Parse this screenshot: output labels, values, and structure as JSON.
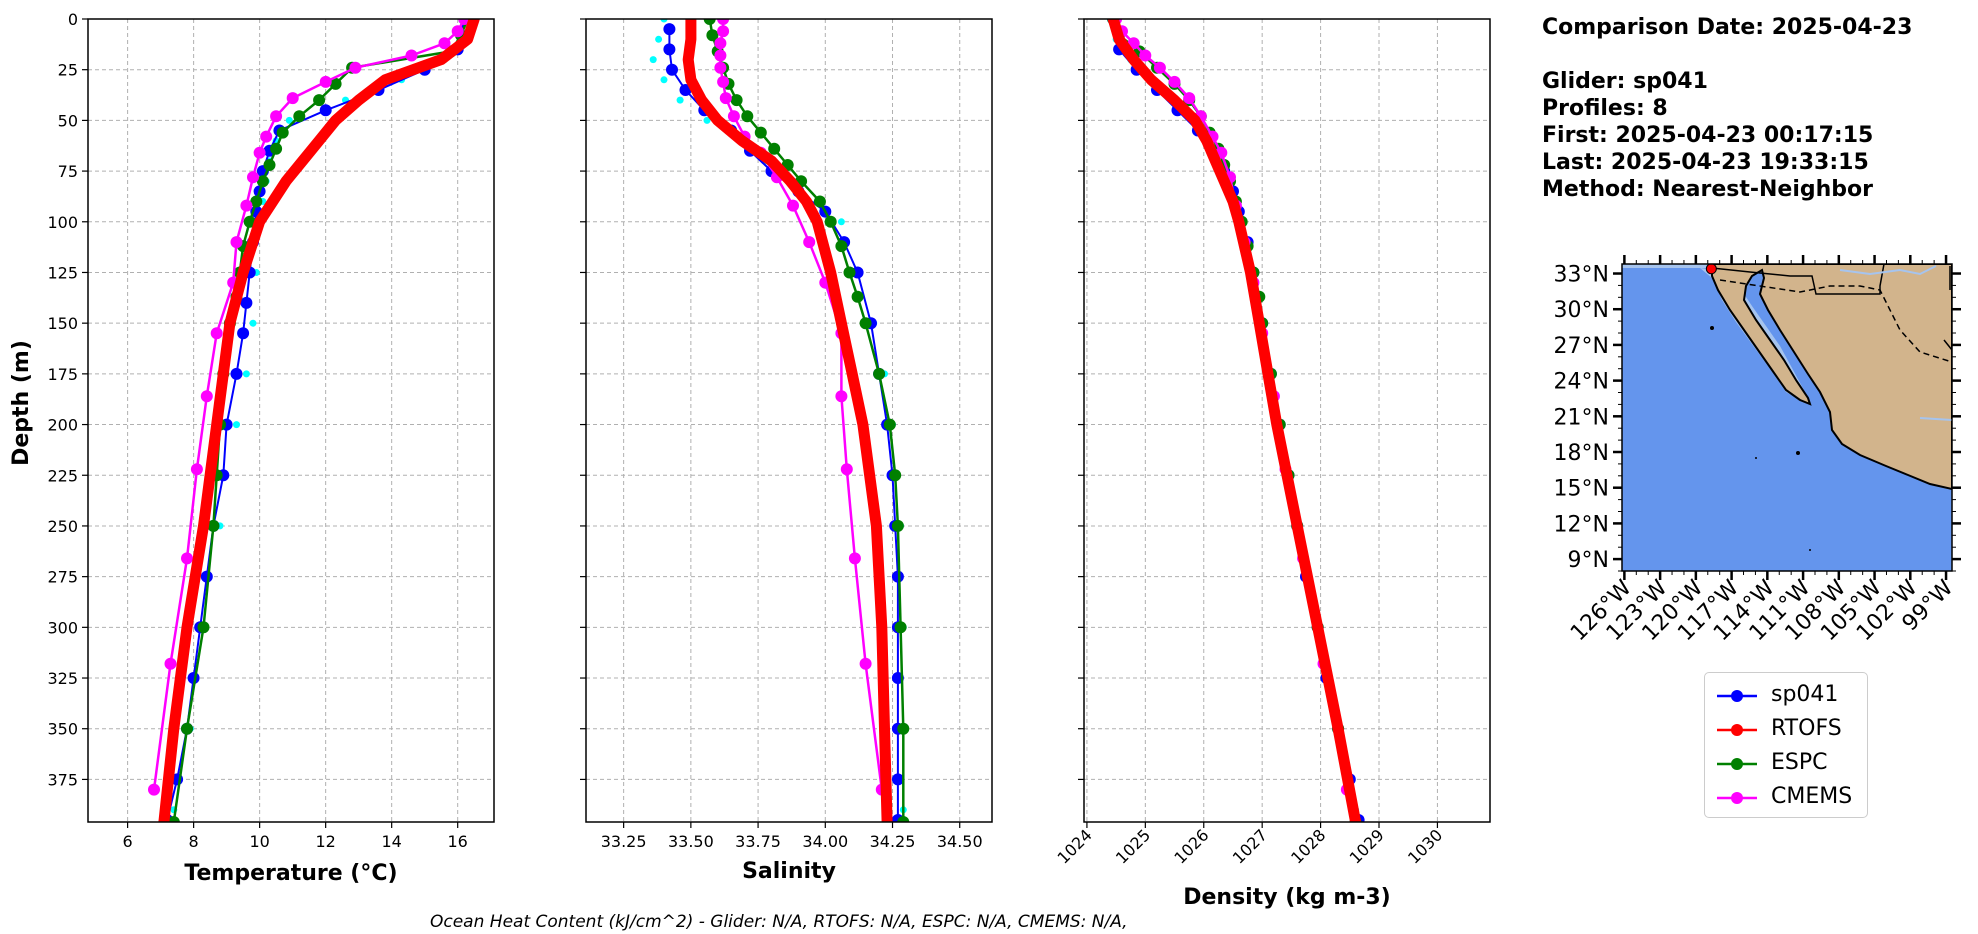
{
  "info": {
    "comparison_date": "Comparison Date: 2025-04-23",
    "glider": "Glider: sp041",
    "profiles": "Profiles: 8",
    "first": "First: 2025-04-23 00:17:15",
    "last": "Last: 2025-04-23 19:33:15",
    "method": "Method: Nearest-Neighbor"
  },
  "footer": "Ocean Heat Content (kJ/cm^2) - Glider: N/A,  RTOFS: N/A,  ESPC: N/A,  CMEMS: N/A,",
  "legend": [
    {
      "name": "sp041",
      "color": "#0000ff"
    },
    {
      "name": "RTOFS",
      "color": "#ff0000"
    },
    {
      "name": "ESPC",
      "color": "#008000"
    },
    {
      "name": "CMEMS",
      "color": "#ff00ff"
    }
  ],
  "colors": {
    "glider_raw": "#00ffff",
    "grid": "#b0b0b0",
    "ocean": "#6495ed",
    "shelf": "#a6c4ee",
    "land": "#d2b48c",
    "marker": "#ff0000"
  },
  "chart_data": [
    {
      "type": "line",
      "xlabel": "Temperature (°C)",
      "ylabel": "Depth (m)",
      "xlim": [
        4.8,
        17.1
      ],
      "ylim": [
        396,
        0
      ],
      "xticks": [
        6,
        8,
        10,
        12,
        14,
        16
      ],
      "yticks": [
        0,
        25,
        50,
        75,
        100,
        125,
        150,
        175,
        200,
        225,
        250,
        275,
        300,
        325,
        350,
        375
      ],
      "grid": true,
      "series": [
        {
          "name": "sp041",
          "depth": [
            0,
            15,
            25,
            35,
            45,
            55,
            65,
            75,
            85,
            95,
            110,
            125,
            140,
            155,
            175,
            200,
            225,
            250,
            275,
            300,
            325,
            350,
            375,
            395
          ],
          "values": [
            16.2,
            16.0,
            15.0,
            13.6,
            12.0,
            10.6,
            10.3,
            10.1,
            10.0,
            9.9,
            9.8,
            9.7,
            9.6,
            9.5,
            9.3,
            9.0,
            8.9,
            8.6,
            8.4,
            8.2,
            8.0,
            7.8,
            7.5,
            7.2
          ]
        },
        {
          "name": "RTOFS",
          "depth": [
            0,
            10,
            20,
            30,
            40,
            50,
            60,
            70,
            80,
            90,
            100,
            125,
            150,
            200,
            250,
            300,
            350,
            396
          ],
          "values": [
            16.5,
            16.3,
            15.5,
            13.8,
            13.0,
            12.3,
            11.8,
            11.3,
            10.8,
            10.4,
            10.0,
            9.5,
            9.1,
            8.7,
            8.3,
            7.8,
            7.4,
            7.1
          ]
        },
        {
          "name": "ESPC",
          "depth": [
            0,
            8,
            16,
            24,
            32,
            40,
            48,
            56,
            64,
            72,
            80,
            90,
            100,
            112,
            125,
            137,
            150,
            175,
            200,
            225,
            250,
            300,
            350,
            396
          ],
          "values": [
            16.3,
            16.1,
            15.8,
            12.8,
            12.3,
            11.8,
            11.2,
            10.7,
            10.5,
            10.3,
            10.1,
            9.9,
            9.7,
            9.5,
            9.4,
            9.3,
            9.1,
            8.9,
            8.8,
            8.7,
            8.6,
            8.3,
            7.8,
            7.4
          ]
        },
        {
          "name": "CMEMS",
          "depth": [
            0,
            6,
            12,
            18,
            24,
            31,
            39,
            48,
            58,
            66,
            78,
            92,
            110,
            130,
            155,
            186,
            222,
            266,
            318,
            380
          ],
          "values": [
            16.2,
            16.0,
            15.6,
            14.6,
            12.9,
            12.0,
            11.0,
            10.5,
            10.2,
            10.0,
            9.8,
            9.6,
            9.3,
            9.2,
            8.7,
            8.4,
            8.1,
            7.8,
            7.3,
            6.8
          ]
        },
        {
          "name": "glider-raw",
          "depth": [
            0,
            10,
            20,
            30,
            40,
            50,
            60,
            70,
            80,
            90,
            100,
            125,
            150,
            175,
            200,
            250,
            300,
            350,
            390
          ],
          "values": [
            16.3,
            16.2,
            15.6,
            14.3,
            12.6,
            10.9,
            10.5,
            10.3,
            10.2,
            10.1,
            10.0,
            9.9,
            9.8,
            9.6,
            9.3,
            8.8,
            8.3,
            7.9,
            7.4
          ]
        }
      ]
    },
    {
      "type": "line",
      "xlabel": "Salinity",
      "ylabel": "",
      "xlim": [
        33.11,
        34.62
      ],
      "ylim": [
        396,
        0
      ],
      "xticks": [
        33.25,
        33.5,
        33.75,
        34.0,
        34.25,
        34.5
      ],
      "xtick_labels": [
        "33.25",
        "33.50",
        "33.75",
        "34.00",
        "34.25",
        "34.50"
      ],
      "yticks": [
        0,
        25,
        50,
        75,
        100,
        125,
        150,
        175,
        200,
        225,
        250,
        275,
        300,
        325,
        350,
        375
      ],
      "grid": true,
      "series": [
        {
          "name": "sp041",
          "depth": [
            5,
            15,
            25,
            35,
            45,
            55,
            65,
            75,
            85,
            95,
            110,
            125,
            150,
            175,
            200,
            225,
            250,
            275,
            300,
            325,
            350,
            375,
            395
          ],
          "values": [
            33.42,
            33.42,
            33.43,
            33.48,
            33.55,
            33.65,
            33.72,
            33.8,
            33.9,
            34.0,
            34.07,
            34.12,
            34.17,
            34.2,
            34.23,
            34.25,
            34.26,
            34.27,
            34.27,
            34.27,
            34.27,
            34.27,
            34.27
          ]
        },
        {
          "name": "RTOFS",
          "depth": [
            0,
            10,
            20,
            30,
            40,
            50,
            60,
            70,
            80,
            90,
            100,
            125,
            150,
            175,
            200,
            250,
            300,
            350,
            396
          ],
          "values": [
            33.5,
            33.5,
            33.49,
            33.5,
            33.54,
            33.6,
            33.69,
            33.8,
            33.87,
            33.93,
            33.97,
            34.02,
            34.06,
            34.1,
            34.14,
            34.19,
            34.21,
            34.22,
            34.23
          ]
        },
        {
          "name": "ESPC",
          "depth": [
            0,
            8,
            16,
            24,
            32,
            40,
            48,
            56,
            64,
            72,
            80,
            90,
            100,
            112,
            125,
            137,
            150,
            175,
            200,
            225,
            250,
            300,
            350,
            396
          ],
          "values": [
            33.57,
            33.58,
            33.6,
            33.62,
            33.64,
            33.67,
            33.71,
            33.76,
            33.81,
            33.86,
            33.91,
            33.98,
            34.02,
            34.06,
            34.09,
            34.12,
            34.15,
            34.2,
            34.24,
            34.26,
            34.27,
            34.28,
            34.29,
            34.29
          ]
        },
        {
          "name": "CMEMS",
          "depth": [
            0,
            6,
            12,
            18,
            24,
            31,
            39,
            48,
            58,
            66,
            78,
            92,
            110,
            130,
            155,
            186,
            222,
            266,
            318,
            380
          ],
          "values": [
            33.62,
            33.62,
            33.61,
            33.61,
            33.61,
            33.62,
            33.63,
            33.66,
            33.7,
            33.76,
            33.82,
            33.88,
            33.94,
            34.0,
            34.06,
            34.06,
            34.08,
            34.11,
            34.15,
            34.21
          ]
        },
        {
          "name": "glider-raw",
          "depth": [
            0,
            10,
            20,
            30,
            40,
            50,
            60,
            70,
            80,
            90,
            100,
            125,
            150,
            175,
            200,
            250,
            300,
            350,
            390
          ],
          "values": [
            33.4,
            33.38,
            33.36,
            33.4,
            33.46,
            33.56,
            33.68,
            33.78,
            33.88,
            33.97,
            34.06,
            34.12,
            34.18,
            34.22,
            34.25,
            34.28,
            34.29,
            34.29,
            34.29
          ]
        }
      ]
    },
    {
      "type": "line",
      "xlabel": "Density (kg m-3)",
      "ylabel": "",
      "xlim": [
        1023.95,
        1030.9
      ],
      "ylim": [
        396,
        0
      ],
      "xticks": [
        1024,
        1025,
        1026,
        1027,
        1028,
        1029,
        1030
      ],
      "yticks": [
        0,
        25,
        50,
        75,
        100,
        125,
        150,
        175,
        200,
        225,
        250,
        275,
        300,
        325,
        350,
        375
      ],
      "grid": true,
      "series": [
        {
          "name": "sp041",
          "depth": [
            0,
            15,
            25,
            35,
            45,
            55,
            65,
            75,
            85,
            95,
            110,
            125,
            150,
            175,
            200,
            225,
            250,
            275,
            300,
            325,
            350,
            375,
            395
          ],
          "values": [
            1024.45,
            1024.55,
            1024.85,
            1025.2,
            1025.55,
            1025.9,
            1026.15,
            1026.35,
            1026.5,
            1026.6,
            1026.75,
            1026.85,
            1027.0,
            1027.15,
            1027.3,
            1027.45,
            1027.6,
            1027.75,
            1027.95,
            1028.1,
            1028.3,
            1028.5,
            1028.65
          ]
        },
        {
          "name": "RTOFS",
          "depth": [
            0,
            10,
            20,
            30,
            40,
            50,
            60,
            70,
            80,
            90,
            100,
            125,
            150,
            175,
            200,
            250,
            300,
            350,
            396
          ],
          "values": [
            1024.45,
            1024.55,
            1024.8,
            1025.1,
            1025.5,
            1025.85,
            1026.05,
            1026.2,
            1026.35,
            1026.5,
            1026.6,
            1026.8,
            1026.95,
            1027.1,
            1027.25,
            1027.6,
            1027.95,
            1028.3,
            1028.6
          ]
        },
        {
          "name": "ESPC",
          "depth": [
            0,
            8,
            16,
            24,
            32,
            40,
            48,
            56,
            64,
            72,
            80,
            90,
            100,
            112,
            125,
            137,
            150,
            175,
            200,
            225,
            250,
            300,
            350,
            396
          ],
          "values": [
            1024.45,
            1024.55,
            1024.9,
            1025.2,
            1025.5,
            1025.75,
            1025.95,
            1026.1,
            1026.25,
            1026.35,
            1026.45,
            1026.55,
            1026.65,
            1026.75,
            1026.85,
            1026.95,
            1027.0,
            1027.15,
            1027.3,
            1027.45,
            1027.6,
            1027.95,
            1028.3,
            1028.6
          ]
        },
        {
          "name": "CMEMS",
          "depth": [
            0,
            6,
            12,
            18,
            24,
            31,
            39,
            48,
            58,
            66,
            78,
            92,
            110,
            130,
            155,
            186,
            222,
            266,
            318,
            380
          ],
          "values": [
            1024.5,
            1024.6,
            1024.8,
            1025.0,
            1025.25,
            1025.5,
            1025.75,
            1025.95,
            1026.15,
            1026.3,
            1026.45,
            1026.55,
            1026.7,
            1026.85,
            1027.0,
            1027.2,
            1027.4,
            1027.7,
            1028.05,
            1028.45
          ]
        },
        {
          "name": "glider-raw",
          "depth": [
            0,
            10,
            20,
            30,
            40,
            50,
            60,
            70,
            80,
            90,
            100,
            125,
            150,
            175,
            200,
            250,
            300,
            350,
            390
          ],
          "values": [
            1024.4,
            1024.5,
            1024.75,
            1025.1,
            1025.45,
            1025.8,
            1026.05,
            1026.25,
            1026.4,
            1026.5,
            1026.6,
            1026.85,
            1027.0,
            1027.15,
            1027.3,
            1027.6,
            1027.95,
            1028.3,
            1028.6
          ]
        }
      ]
    }
  ],
  "map": {
    "lat_ticks": [
      "33°N",
      "30°N",
      "27°N",
      "24°N",
      "21°N",
      "18°N",
      "15°N",
      "12°N",
      "9°N"
    ],
    "lat_values": [
      33,
      30,
      27,
      24,
      21,
      18,
      15,
      12,
      9
    ],
    "lon_ticks": [
      "126°W",
      "123°W",
      "120°W",
      "117°W",
      "114°W",
      "111°W",
      "108°W",
      "105°W",
      "102°W",
      "99°W"
    ],
    "lon_values": [
      -126,
      -123,
      -120,
      -117,
      -114,
      -111,
      -108,
      -105,
      -102,
      -99
    ],
    "lat_range": [
      8,
      33.8
    ],
    "lon_range": [
      -126.2,
      -98.5
    ],
    "glider_position": [
      -118.7,
      33.4
    ]
  }
}
